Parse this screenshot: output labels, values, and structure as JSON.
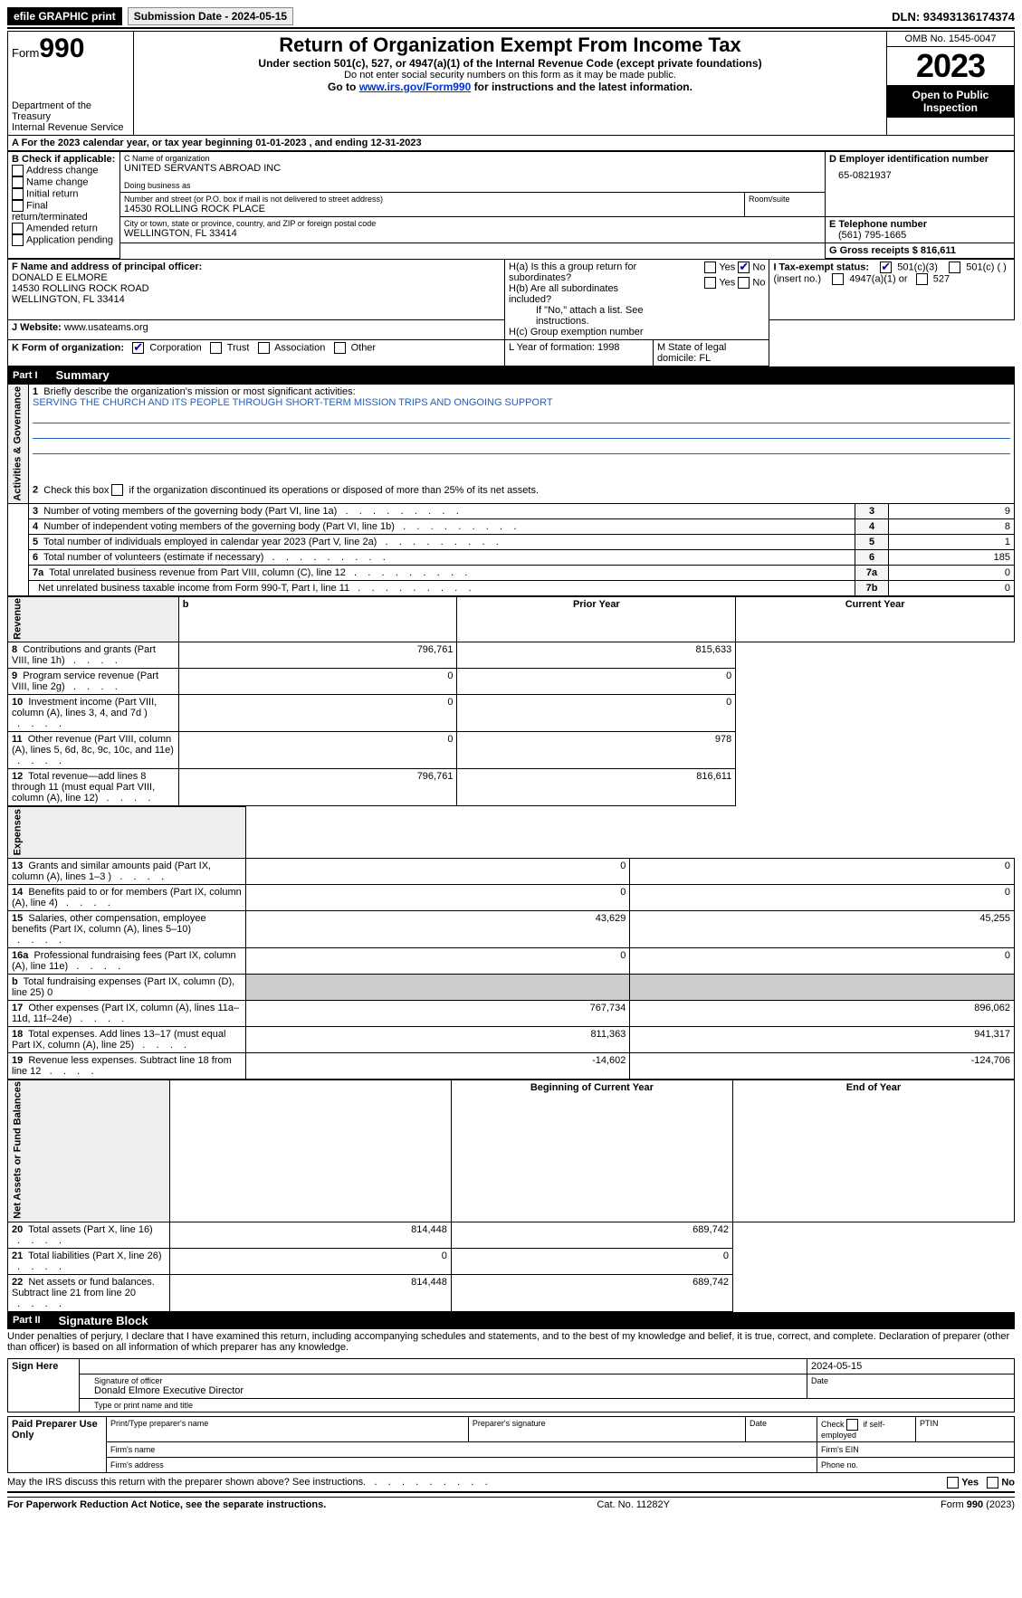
{
  "topbar": {
    "efile": "efile GRAPHIC print",
    "submission_label": "Submission Date - 2024-05-15",
    "dln_label": "DLN: 93493136174374"
  },
  "header": {
    "form_word": "Form",
    "form_no": "990",
    "dept": "Department of the Treasury",
    "irs": "Internal Revenue Service",
    "title": "Return of Organization Exempt From Income Tax",
    "sub1": "Under section 501(c), 527, or 4947(a)(1) of the Internal Revenue Code (except private foundations)",
    "sub2": "Do not enter social security numbers on this form as it may be made public.",
    "sub3_pre": "Go to ",
    "sub3_link": "www.irs.gov/Form990",
    "sub3_post": " for instructions and the latest information.",
    "omb": "OMB No. 1545-0047",
    "year": "2023",
    "open": "Open to Public Inspection"
  },
  "row_a": "A For the 2023 calendar year, or tax year beginning 01-01-2023    , and ending 12-31-2023",
  "box_b": {
    "label": "B Check if applicable:",
    "items": [
      "Address change",
      "Name change",
      "Initial return",
      "Final return/terminated",
      "Amended return",
      "Application pending"
    ]
  },
  "box_c": {
    "name_label": "C Name of organization",
    "name": "UNITED SERVANTS ABROAD INC",
    "dba_label": "Doing business as",
    "street_label": "Number and street (or P.O. box if mail is not delivered to street address)",
    "room_label": "Room/suite",
    "street": "14530 ROLLING ROCK PLACE",
    "city_label": "City or town, state or province, country, and ZIP or foreign postal code",
    "city": "WELLINGTON, FL  33414"
  },
  "box_d": {
    "label": "D Employer identification number",
    "value": "65-0821937"
  },
  "box_e": {
    "label": "E Telephone number",
    "value": "(561) 795-1665"
  },
  "box_g": {
    "label": "G Gross receipts $ 816,611"
  },
  "box_f": {
    "label": "F  Name and address of principal officer:",
    "l1": "DONALD E ELMORE",
    "l2": "14530 ROLLING ROCK ROAD",
    "l3": "WELLINGTON, FL  33414"
  },
  "box_h": {
    "a": "H(a)  Is this a group return for subordinates?",
    "b": "H(b)  Are all subordinates included?",
    "note": "If \"No,\" attach a list. See instructions.",
    "c": "H(c)  Group exemption number  ",
    "yes": "Yes",
    "no": "No"
  },
  "box_i": {
    "label": "I    Tax-exempt status:",
    "o1": "501(c)(3)",
    "o2": "501(c) (   ) (insert no.)",
    "o3": "4947(a)(1) or",
    "o4": "527"
  },
  "box_j": {
    "label": "J    Website: ",
    "value": "  www.usateams.org"
  },
  "box_k": {
    "label": "K Form of organization:",
    "o1": "Corporation",
    "o2": "Trust",
    "o3": "Association",
    "o4": "Other"
  },
  "box_l": "L Year of formation: 1998",
  "box_m": "M State of legal domicile: FL",
  "part1": {
    "label": "Part I",
    "title": "Summary"
  },
  "summary": {
    "q1": "Briefly describe the organization's mission or most significant activities:",
    "mission": "SERVING THE CHURCH AND ITS PEOPLE THROUGH SHORT-TERM MISSION TRIPS AND ONGOING SUPPORT",
    "q2": "Check this box        if the organization discontinued its operations or disposed of more than 25% of its net assets.",
    "lines_gov": [
      {
        "n": "3",
        "t": "Number of voting members of the governing body (Part VI, line 1a)",
        "k": "3",
        "v": "9"
      },
      {
        "n": "4",
        "t": "Number of independent voting members of the governing body (Part VI, line 1b)",
        "k": "4",
        "v": "8"
      },
      {
        "n": "5",
        "t": "Total number of individuals employed in calendar year 2023 (Part V, line 2a)",
        "k": "5",
        "v": "1"
      },
      {
        "n": "6",
        "t": "Total number of volunteers (estimate if necessary)",
        "k": "6",
        "v": "185"
      },
      {
        "n": "7a",
        "t": "Total unrelated business revenue from Part VIII, column (C), line 12",
        "k": "7a",
        "v": "0"
      },
      {
        "n": "",
        "t": "Net unrelated business taxable income from Form 990-T, Part I, line 11",
        "k": "7b",
        "v": "0"
      }
    ],
    "prior_label": "Prior Year",
    "current_label": "Current Year",
    "revenue": [
      {
        "n": "8",
        "t": "Contributions and grants (Part VIII, line 1h)",
        "p": "796,761",
        "c": "815,633"
      },
      {
        "n": "9",
        "t": "Program service revenue (Part VIII, line 2g)",
        "p": "0",
        "c": "0"
      },
      {
        "n": "10",
        "t": "Investment income (Part VIII, column (A), lines 3, 4, and 7d )",
        "p": "0",
        "c": "0"
      },
      {
        "n": "11",
        "t": "Other revenue (Part VIII, column (A), lines 5, 6d, 8c, 9c, 10c, and 11e)",
        "p": "0",
        "c": "978"
      },
      {
        "n": "12",
        "t": "Total revenue—add lines 8 through 11 (must equal Part VIII, column (A), line 12)",
        "p": "796,761",
        "c": "816,611"
      }
    ],
    "expenses": [
      {
        "n": "13",
        "t": "Grants and similar amounts paid (Part IX, column (A), lines 1–3 )",
        "p": "0",
        "c": "0"
      },
      {
        "n": "14",
        "t": "Benefits paid to or for members (Part IX, column (A), line 4)",
        "p": "0",
        "c": "0"
      },
      {
        "n": "15",
        "t": "Salaries, other compensation, employee benefits (Part IX, column (A), lines 5–10)",
        "p": "43,629",
        "c": "45,255"
      },
      {
        "n": "16a",
        "t": "Professional fundraising fees (Part IX, column (A), line 11e)",
        "p": "0",
        "c": "0"
      },
      {
        "n": "b",
        "t": "Total fundraising expenses (Part IX, column (D), line 25) 0",
        "p": "GREY",
        "c": "GREY"
      },
      {
        "n": "17",
        "t": "Other expenses (Part IX, column (A), lines 11a–11d, 11f–24e)",
        "p": "767,734",
        "c": "896,062"
      },
      {
        "n": "18",
        "t": "Total expenses. Add lines 13–17 (must equal Part IX, column (A), line 25)",
        "p": "811,363",
        "c": "941,317"
      },
      {
        "n": "19",
        "t": "Revenue less expenses. Subtract line 18 from line 12",
        "p": "-14,602",
        "c": "-124,706"
      }
    ],
    "bcy": "Beginning of Current Year",
    "eoy": "End of Year",
    "netassets": [
      {
        "n": "20",
        "t": "Total assets (Part X, line 16)",
        "p": "814,448",
        "c": "689,742"
      },
      {
        "n": "21",
        "t": "Total liabilities (Part X, line 26)",
        "p": "0",
        "c": "0"
      },
      {
        "n": "22",
        "t": "Net assets or fund balances. Subtract line 21 from line 20",
        "p": "814,448",
        "c": "689,742"
      }
    ],
    "vtabs": {
      "gov": "Activities & Governance",
      "rev": "Revenue",
      "exp": "Expenses",
      "net": "Net Assets or Fund Balances"
    }
  },
  "part2": {
    "label": "Part II",
    "title": "Signature Block"
  },
  "perjury": "Under penalties of perjury, I declare that I have examined this return, including accompanying schedules and statements, and to the best of my knowledge and belief, it is true, correct, and complete. Declaration of preparer (other than officer) is based on all information of which preparer has any knowledge.",
  "sign": {
    "here": "Sign Here",
    "date": "2024-05-15",
    "sig_label": "Signature of officer",
    "date_label": "Date",
    "officer": "Donald Elmore  Executive Director",
    "type_label": "Type or print name and title"
  },
  "preparer": {
    "left": "Paid Preparer Use Only",
    "name_label": "Print/Type preparer's name",
    "sig_label": "Preparer's signature",
    "date_label": "Date",
    "check_label": "Check         if self-employed",
    "ptin": "PTIN",
    "firm_name": "Firm's name  ",
    "firm_ein": "Firm's EIN  ",
    "firm_addr": "Firm's address  ",
    "phone": "Phone no."
  },
  "discuss": "May the IRS discuss this return with the preparer shown above? See instructions.",
  "footer": {
    "left": "For Paperwork Reduction Act Notice, see the separate instructions.",
    "mid": "Cat. No. 11282Y",
    "right_pre": "Form ",
    "right_b": "990",
    "right_post": " (2023)"
  }
}
